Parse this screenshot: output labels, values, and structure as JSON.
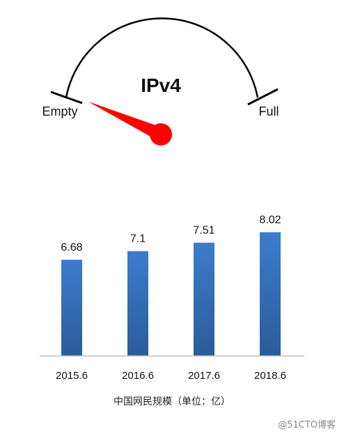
{
  "gauge": {
    "title": "IPv4",
    "min_label": "Empty",
    "max_label": "Full",
    "level": 0.05,
    "colors": {
      "arc": "#000000",
      "needle": "#ff0000"
    }
  },
  "chart_data": {
    "type": "bar",
    "categories": [
      "2015.6",
      "2016.6",
      "2017.6",
      "2018.6"
    ],
    "values": [
      6.68,
      7.1,
      7.51,
      8.02
    ],
    "data_labels": [
      "6.68",
      "7.1",
      "7.51",
      "8.02"
    ],
    "title": "",
    "xlabel": "中国网民规模（单位：亿）",
    "ylabel": "",
    "ylim": [
      0,
      8.5
    ],
    "grid": false,
    "colors": {
      "bar_top": "#3b7dcc",
      "bar_bottom": "#2b5b9a",
      "axis": "#bfbfbf"
    }
  },
  "watermark": "@51CTO博客"
}
